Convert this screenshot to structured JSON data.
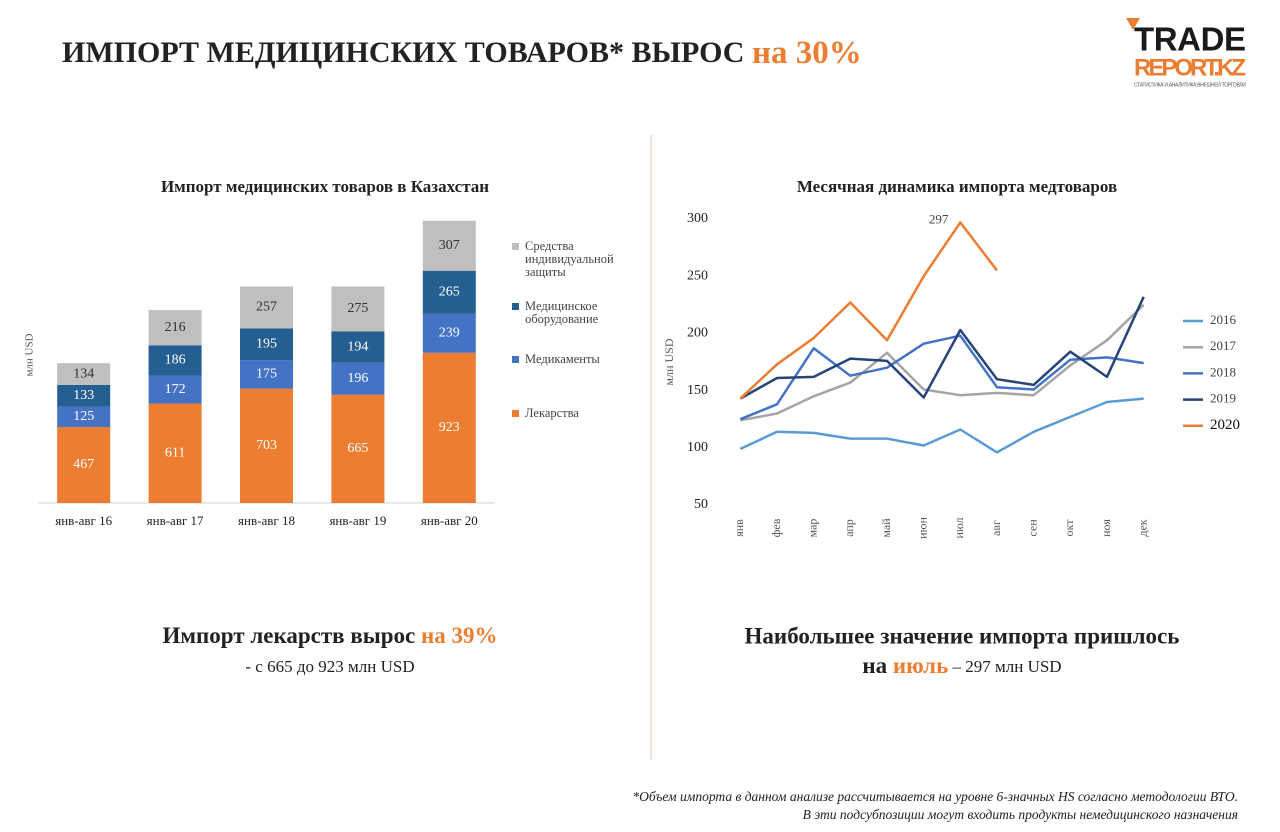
{
  "header": {
    "title_main": "ИМПОРТ МЕДИЦИНСКИХ ТОВАРОВ* ВЫРОС ",
    "title_accent": "на 30%",
    "logo_top": "TRADE",
    "logo_bottom": "REPORT.KZ",
    "logo_tagline": "СТАТИСТИКА И АНАЛИТИКА ВНЕШНЕЙ ТОРГОВЛИ"
  },
  "chart_data": [
    {
      "type": "bar",
      "stacked": true,
      "title": "Импорт медицинских товаров в Казахстан",
      "y_label": "млн USD",
      "categories": [
        "янв-авг 16",
        "янв-авг 17",
        "янв-авг 18",
        "янв-авг 19",
        "янв-авг 20"
      ],
      "ylim": [
        0,
        1800
      ],
      "legend": "right",
      "series": [
        {
          "name": "Лекарства",
          "color": "#ed7d31",
          "values": [
            467,
            611,
            703,
            665,
            923
          ]
        },
        {
          "name": "Медикаменты",
          "color": "#4472c4",
          "values": [
            125,
            172,
            175,
            196,
            239
          ]
        },
        {
          "name": "Медицинское оборудование",
          "color": "#255e91",
          "values": [
            133,
            186,
            195,
            194,
            265
          ]
        },
        {
          "name": "Средства индивидуальной защиты",
          "color": "#bfbfbf",
          "values": [
            134,
            216,
            257,
            275,
            307
          ]
        }
      ]
    },
    {
      "type": "line",
      "title": "Месячная динамика импорта медтоваров",
      "y_label": "млн USD",
      "categories": [
        "янв",
        "фев",
        "мар",
        "апр",
        "май",
        "июн",
        "июл",
        "авг",
        "сен",
        "окт",
        "ноя",
        "дек"
      ],
      "ylim": [
        50,
        300
      ],
      "yticks": [
        50,
        100,
        150,
        200,
        250,
        300
      ],
      "grid": false,
      "legend": "right",
      "series": [
        {
          "name": "2016",
          "color": "#5b9bd5",
          "values": [
            99,
            114,
            113,
            108,
            108,
            102,
            116,
            96,
            114,
            127,
            140,
            143
          ]
        },
        {
          "name": "2017",
          "color": "#a5a5a5",
          "values": [
            124,
            130,
            145,
            157,
            183,
            151,
            146,
            148,
            146,
            172,
            194,
            225
          ]
        },
        {
          "name": "2018",
          "color": "#4472c4",
          "values": [
            125,
            138,
            187,
            163,
            170,
            191,
            198,
            153,
            151,
            177,
            179,
            174
          ]
        },
        {
          "name": "2019",
          "color": "#264478",
          "values": [
            143,
            161,
            162,
            178,
            176,
            144,
            203,
            160,
            155,
            184,
            162,
            232
          ]
        },
        {
          "name": "2020",
          "color": "#ed7d31",
          "values": [
            143,
            173,
            196,
            227,
            194,
            250,
            297,
            255,
            null,
            null,
            null,
            null
          ]
        }
      ]
    }
  ],
  "captions": {
    "left_main": "Импорт лекарств вырос ",
    "left_accent": "на 39%",
    "left_sub": "- с 665 до 923 млн USD",
    "right_line1": "Наибольшее значение импорта пришлось",
    "right_pre": "на ",
    "right_accent": "июль",
    "right_post": " – 297 млн USD"
  },
  "footnote": {
    "line1": "*Объем импорта в данном анализе рассчитывается на уровне 6-значных HS согласно методологии ВТО.",
    "line2": "В эти подсубпозиции могут входить продукты немедицинского назначения"
  }
}
